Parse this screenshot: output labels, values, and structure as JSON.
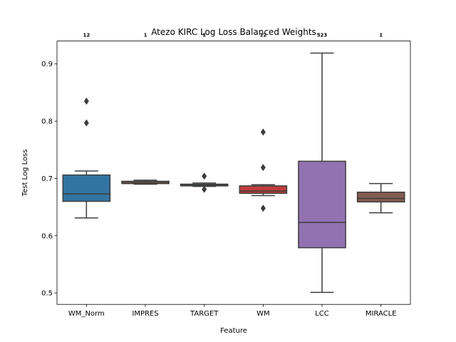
{
  "chart_data": {
    "type": "box",
    "title": "Atezo KIRC Log Loss Balanced Weights",
    "xlabel": "Feature",
    "ylabel": "Test Log Loss",
    "ylim": [
      0.48,
      0.94
    ],
    "yticks": [
      0.5,
      0.6,
      0.7,
      0.8,
      0.9
    ],
    "ytick_labels": [
      "0.5",
      "0.6",
      "0.7",
      "0.8",
      "0.9"
    ],
    "grid": false,
    "categories": [
      "WM_Norm",
      "IMPRES",
      "TARGET",
      "WM",
      "LCC",
      "MIRACLE"
    ],
    "counts": [
      "12",
      "1",
      "1",
      "12",
      "523",
      "1"
    ],
    "boxes": [
      {
        "name": "WM_Norm",
        "color": "#3274a1",
        "whisker_low": 0.631,
        "q1": 0.66,
        "median": 0.673,
        "q3": 0.706,
        "whisker_high": 0.713,
        "outliers": [
          0.797,
          0.835
        ]
      },
      {
        "name": "IMPRES",
        "color": "#e1812c",
        "whisker_low": 0.69,
        "q1": 0.691,
        "median": 0.693,
        "q3": 0.695,
        "whisker_high": 0.697,
        "outliers": []
      },
      {
        "name": "TARGET",
        "color": "#3a923a",
        "whisker_low": 0.686,
        "q1": 0.687,
        "median": 0.689,
        "q3": 0.69,
        "whisker_high": 0.692,
        "outliers": [
          0.681,
          0.704
        ]
      },
      {
        "name": "WM",
        "color": "#c03d3e",
        "whisker_low": 0.67,
        "q1": 0.674,
        "median": 0.678,
        "q3": 0.687,
        "whisker_high": 0.689,
        "outliers": [
          0.648,
          0.719,
          0.781
        ]
      },
      {
        "name": "LCC",
        "color": "#9372b2",
        "whisker_low": 0.501,
        "q1": 0.579,
        "median": 0.623,
        "q3": 0.73,
        "whisker_high": 0.919,
        "outliers": []
      },
      {
        "name": "MIRACLE",
        "color": "#845b53",
        "whisker_low": 0.64,
        "q1": 0.659,
        "median": 0.665,
        "q3": 0.676,
        "whisker_high": 0.691,
        "outliers": []
      }
    ]
  }
}
